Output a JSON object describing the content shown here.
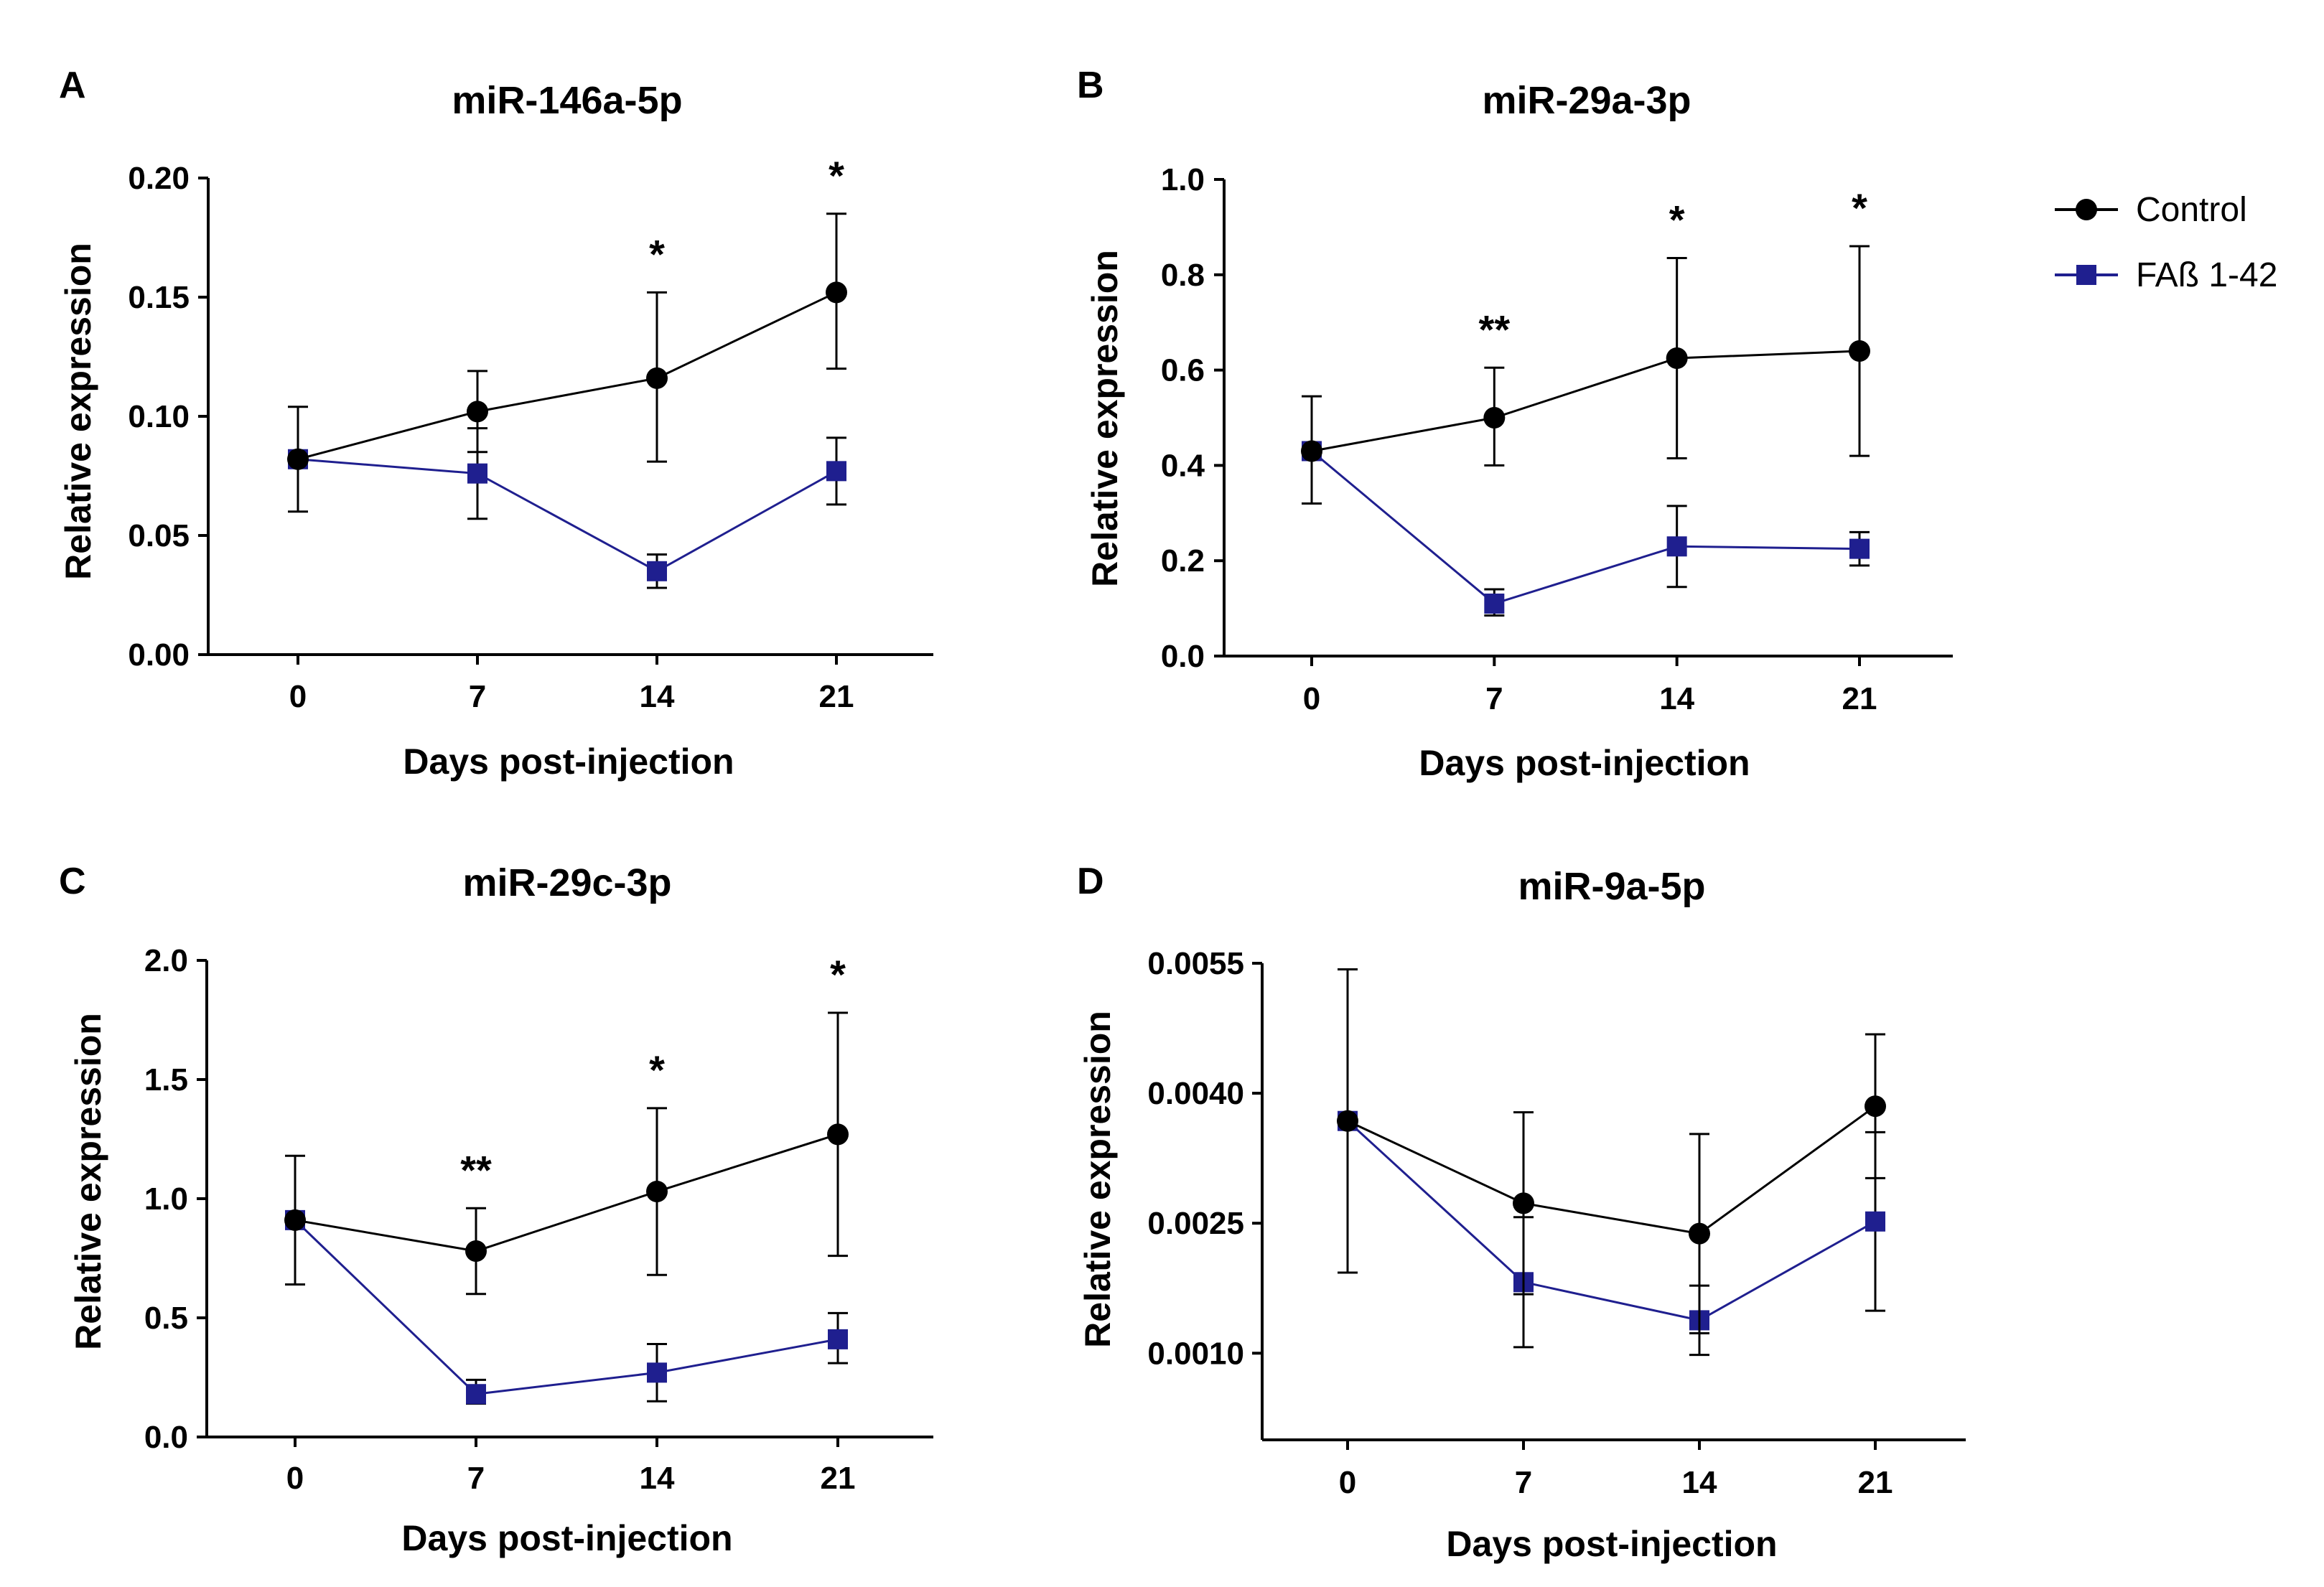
{
  "legend": {
    "entries": [
      {
        "name": "Control",
        "marker": "circle",
        "color": "#000000"
      },
      {
        "name": "FAß 1-42",
        "marker": "square",
        "color": "#1F1F8F"
      }
    ]
  },
  "chart_data": [
    {
      "type": "line",
      "panel": "A",
      "title": "miR-146a-5p",
      "xlabel": "Days post-injection",
      "ylabel": "Relative expression",
      "x": [
        0,
        7,
        14,
        21
      ],
      "xticks": [
        "0",
        "7",
        "14",
        "21"
      ],
      "ylim": [
        0,
        0.2
      ],
      "yticks": [
        "0.00",
        "0.05",
        "0.10",
        "0.15",
        "0.20"
      ],
      "ytick_values": [
        0,
        0.05,
        0.1,
        0.15,
        0.2
      ],
      "series": [
        {
          "name": "Control",
          "values": [
            0.082,
            0.102,
            0.116,
            0.152
          ],
          "err_high": [
            0.104,
            0.119,
            0.152,
            0.185
          ],
          "err_low": [
            0.06,
            0.085,
            0.081,
            0.12
          ]
        },
        {
          "name": "FAß 1-42",
          "values": [
            0.082,
            0.076,
            0.035,
            0.077
          ],
          "err_high": [
            0.082,
            0.095,
            0.042,
            0.091
          ],
          "err_low": [
            0.082,
            0.057,
            0.028,
            0.063
          ]
        }
      ],
      "annotations": [
        {
          "x": 14,
          "y": 0.152,
          "text": "*"
        },
        {
          "x": 21,
          "y": 0.185,
          "text": "*"
        }
      ]
    },
    {
      "type": "line",
      "panel": "B",
      "title": "miR-29a-3p",
      "xlabel": "Days post-injection",
      "ylabel": "Relative expression",
      "x": [
        0,
        7,
        14,
        21
      ],
      "xticks": [
        "0",
        "7",
        "14",
        "21"
      ],
      "ylim": [
        0,
        1.0
      ],
      "yticks": [
        "0.0",
        "0.2",
        "0.4",
        "0.6",
        "0.8",
        "1.0"
      ],
      "ytick_values": [
        0,
        0.2,
        0.4,
        0.6,
        0.8,
        1.0
      ],
      "series": [
        {
          "name": "Control",
          "values": [
            0.43,
            0.5,
            0.625,
            0.64
          ],
          "err_high": [
            0.545,
            0.605,
            0.835,
            0.86
          ],
          "err_low": [
            0.32,
            0.4,
            0.415,
            0.42
          ]
        },
        {
          "name": "FAß 1-42",
          "values": [
            0.43,
            0.11,
            0.23,
            0.225
          ],
          "err_high": [
            0.43,
            0.14,
            0.315,
            0.26
          ],
          "err_low": [
            0.43,
            0.085,
            0.145,
            0.19
          ]
        }
      ],
      "annotations": [
        {
          "x": 7,
          "y": 0.605,
          "text": "**"
        },
        {
          "x": 14,
          "y": 0.835,
          "text": "*"
        },
        {
          "x": 21,
          "y": 0.86,
          "text": "*"
        }
      ]
    },
    {
      "type": "line",
      "panel": "C",
      "title": "miR-29c-3p",
      "xlabel": "Days post-injection",
      "ylabel": "Relative expression",
      "x": [
        0,
        7,
        14,
        21
      ],
      "xticks": [
        "0",
        "7",
        "14",
        "21"
      ],
      "ylim": [
        0,
        2.0
      ],
      "yticks": [
        "0.0",
        "0.5",
        "1.0",
        "1.5",
        "2.0"
      ],
      "ytick_values": [
        0,
        0.5,
        1.0,
        1.5,
        2.0
      ],
      "series": [
        {
          "name": "Control",
          "values": [
            0.91,
            0.78,
            1.03,
            1.27
          ],
          "err_high": [
            1.18,
            0.96,
            1.38,
            1.78
          ],
          "err_low": [
            0.64,
            0.6,
            0.68,
            0.76
          ]
        },
        {
          "name": "FAß 1-42",
          "values": [
            0.91,
            0.18,
            0.27,
            0.41
          ],
          "err_high": [
            0.91,
            0.24,
            0.39,
            0.52
          ],
          "err_low": [
            0.91,
            0.14,
            0.15,
            0.31
          ]
        }
      ],
      "annotations": [
        {
          "x": 7,
          "y": 0.96,
          "text": "**"
        },
        {
          "x": 14,
          "y": 1.38,
          "text": "*"
        },
        {
          "x": 21,
          "y": 1.78,
          "text": "*"
        }
      ]
    },
    {
      "type": "line",
      "panel": "D",
      "title": "miR-9a-5p",
      "xlabel": "Days post-injection",
      "ylabel": "Relative expression",
      "x": [
        0,
        7,
        14,
        21
      ],
      "xticks": [
        "0",
        "7",
        "14",
        "21"
      ],
      "ylim": [
        0,
        0.0055
      ],
      "yticks": [
        "0.0010",
        "0.0025",
        "0.0040",
        "0.0055"
      ],
      "ytick_values": [
        0.001,
        0.0025,
        0.004,
        0.0055
      ],
      "series": [
        {
          "name": "Control",
          "values": [
            0.00368,
            0.00273,
            0.00238,
            0.00385
          ],
          "err_high": [
            0.00543,
            0.00378,
            0.00353,
            0.00468
          ],
          "err_low": [
            0.00193,
            0.00168,
            0.00123,
            0.00302
          ]
        },
        {
          "name": "FAß 1-42",
          "values": [
            0.00368,
            0.00182,
            0.00138,
            0.00252
          ],
          "err_high": [
            0.00368,
            0.00257,
            0.00178,
            0.00355
          ],
          "err_low": [
            0.00368,
            0.00107,
            0.00098,
            0.00149
          ]
        }
      ],
      "annotations": []
    }
  ]
}
